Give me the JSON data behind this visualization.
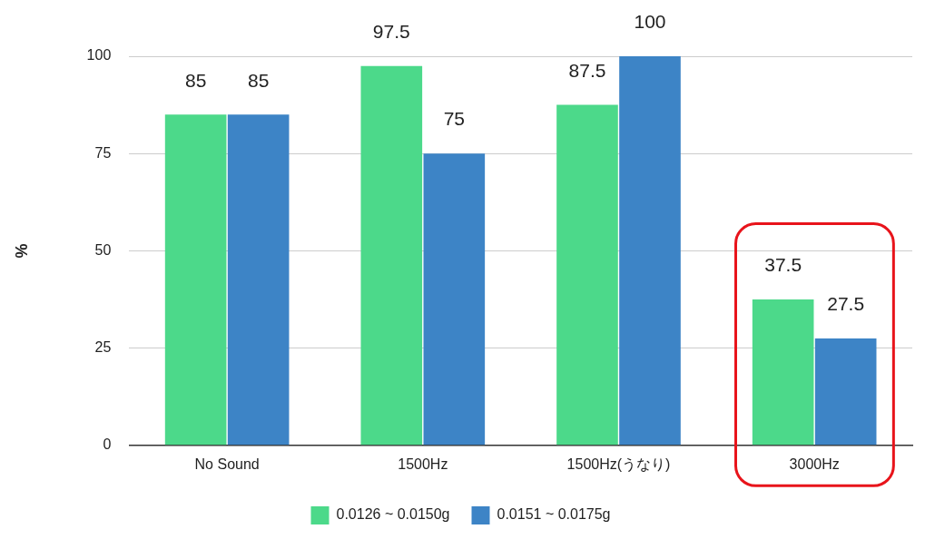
{
  "chart_data": {
    "type": "bar",
    "ylabel": "%",
    "categories": [
      "No Sound",
      "1500Hz",
      "1500Hz(うなり)",
      "3000Hz"
    ],
    "series": [
      {
        "name": "0.0126 ~ 0.0150g",
        "color": "#4cd98a",
        "values": [
          85,
          97.5,
          87.5,
          37.5
        ]
      },
      {
        "name": "0.0151 ~ 0.0175g",
        "color": "#3d84c6",
        "values": [
          85,
          75,
          100,
          27.5
        ]
      }
    ],
    "ylim": [
      0,
      100
    ],
    "yticks": [
      0,
      25,
      50,
      75,
      100
    ],
    "grid": "y",
    "legend": "bottom",
    "data_labels": true
  }
}
